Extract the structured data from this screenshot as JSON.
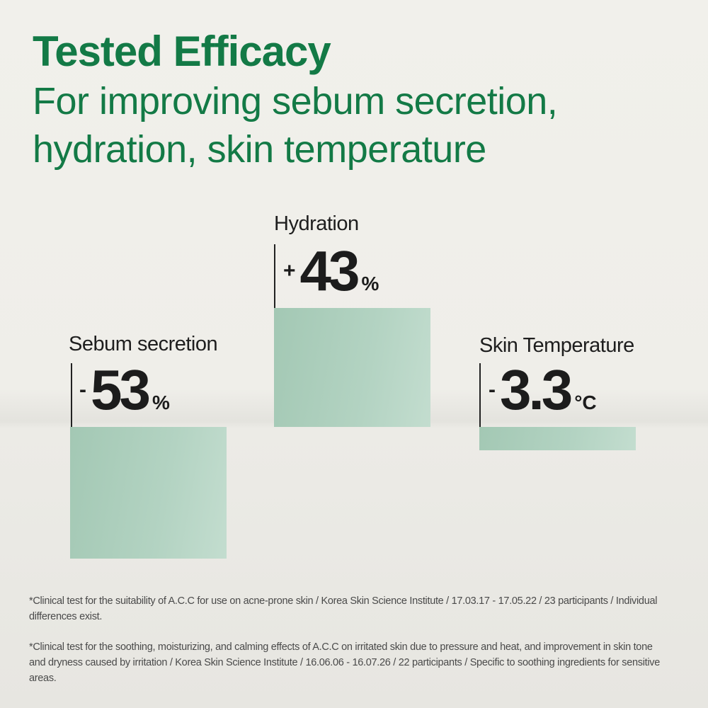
{
  "header": {
    "title": "Tested Efficacy",
    "subtitle_line1": "For improving sebum secretion,",
    "subtitle_line2": "hydration, skin temperature"
  },
  "colors": {
    "accent": "#137a46",
    "bar": "#a9cdb9",
    "text": "#1c1c1c"
  },
  "chart_data": {
    "type": "bar",
    "categories": [
      "Sebum secretion",
      "Hydration",
      "Skin Temperature"
    ],
    "values": [
      -53,
      43,
      -3.3
    ],
    "units": [
      "%",
      "%",
      "°C"
    ],
    "labels": [
      {
        "sign": "-",
        "num": "53",
        "unit": "%"
      },
      {
        "sign": "+",
        "num": "43",
        "unit": "%"
      },
      {
        "sign": "-",
        "num": "3.3",
        "unit": "°C"
      }
    ]
  },
  "footnotes": [
    "*Clinical test for the suitability of A.C.C for use on acne-prone skin / Korea Skin Science Institute / 17.03.17 - 17.05.22 / 23 participants / Individual differences exist.",
    "*Clinical test for the soothing, moisturizing, and calming effects of A.C.C on irritated skin due to pressure and heat, and improvement in skin tone and dryness caused by irritation / Korea Skin Science Institute / 16.06.06 - 16.07.26 / 22 participants / Specific to soothing ingredients for sensitive areas."
  ]
}
